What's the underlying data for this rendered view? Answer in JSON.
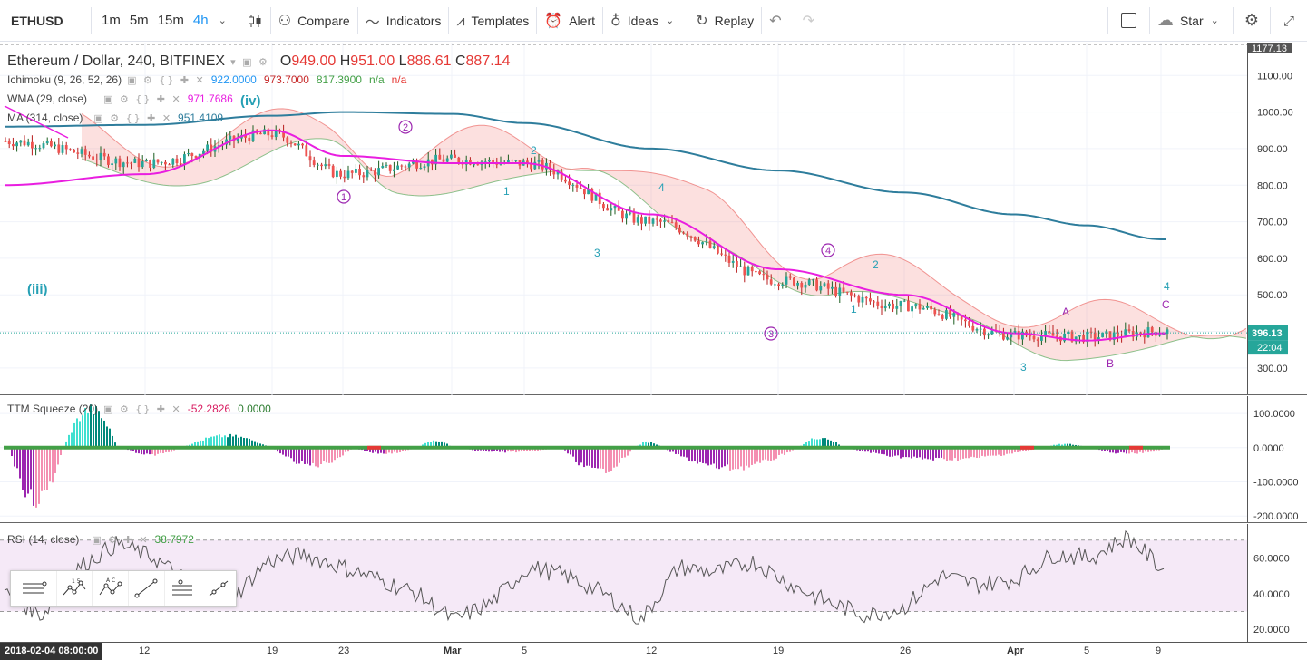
{
  "toolbar": {
    "symbol": "ETHUSD",
    "timeframes": [
      "1m",
      "5m",
      "15m",
      "4h"
    ],
    "active_timeframe": "4h",
    "compare": "Compare",
    "indicators": "Indicators",
    "templates": "Templates",
    "alert": "Alert",
    "ideas": "Ideas",
    "replay": "Replay",
    "star": "Star"
  },
  "legend": {
    "title": "Ethereum / Dollar, 240, BITFINEX",
    "o_label": "O",
    "o": "949.00",
    "h_label": "H",
    "h": "951.00",
    "l_label": "L",
    "l": "886.61",
    "c_label": "C",
    "c": "887.14",
    "ichimoku": {
      "name": "Ichimoku (9, 26, 52, 26)",
      "v1": "922.0000",
      "v2": "973.7000",
      "v3": "817.3900",
      "v4": "n/a",
      "v5": "n/a"
    },
    "wma": {
      "name": "WMA (29, close)",
      "value": "971.7686"
    },
    "ma": {
      "name": "MA (314, close)",
      "value": "951.4109"
    },
    "ttm": {
      "name": "TTM Squeeze (20)",
      "v1": "-52.2826",
      "v2": "0.0000"
    },
    "rsi": {
      "name": "RSI (14, close)",
      "value": "38.7972"
    }
  },
  "price_axis": {
    "top_badge": "1177.13",
    "current_price": "396.13",
    "countdown": "22:04"
  },
  "time_axis": {
    "current_date": "2018-02-04 08:00:00",
    "labels": [
      "12",
      "19",
      "23",
      "Mar",
      "5",
      "12",
      "19",
      "26",
      "Apr",
      "5",
      "9"
    ]
  },
  "chart_data": [
    {
      "type": "line",
      "title": "Ethereum / Dollar, 240, BITFINEX",
      "x": [
        "Feb 4",
        "Feb 12",
        "Feb 19",
        "Feb 23",
        "Mar 1",
        "Mar 5",
        "Mar 12",
        "Mar 19",
        "Mar 26",
        "Apr 2",
        "Apr 5",
        "Apr 9"
      ],
      "series": [
        {
          "name": "price",
          "values": [
            920,
            860,
            940,
            830,
            870,
            860,
            700,
            540,
            470,
            390,
            385,
            400
          ]
        },
        {
          "name": "WMA (29, close)",
          "values": [
            800,
            830,
            950,
            880,
            860,
            860,
            720,
            570,
            500,
            395,
            375,
            395
          ]
        },
        {
          "name": "MA (314, close)",
          "values": [
            960,
            965,
            990,
            1000,
            995,
            970,
            900,
            840,
            780,
            720,
            690,
            652
          ]
        }
      ],
      "ylim": [
        270,
        1180
      ],
      "yticks": [
        "300.00",
        "400.00",
        "500.00",
        "600.00",
        "700.00",
        "800.00",
        "900.00",
        "1000.00",
        "1100.00"
      ],
      "annotations": [
        "(iii)",
        "(iv)",
        "1",
        "2",
        "3",
        "4",
        "A",
        "B",
        "C"
      ]
    },
    {
      "type": "bar",
      "title": "TTM Squeeze (20)",
      "ylim": [
        -210,
        140
      ],
      "yticks": [
        "100.0000",
        "0.0000",
        "-100.0000",
        "-200.0000"
      ]
    },
    {
      "type": "line",
      "title": "RSI (14, close)",
      "ylim": [
        15,
        77
      ],
      "yticks": [
        "60.0000",
        "40.0000",
        "20.0000"
      ],
      "bands": [
        30,
        70
      ]
    }
  ]
}
